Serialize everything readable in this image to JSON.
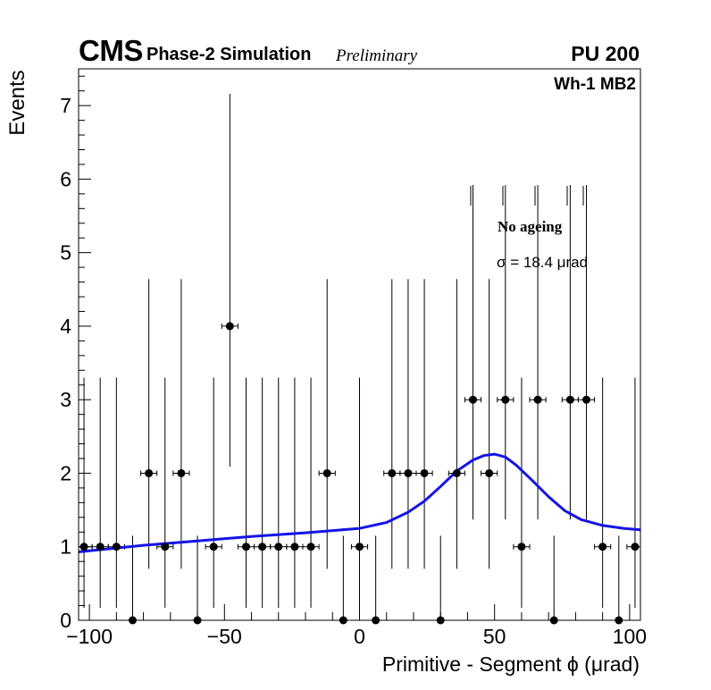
{
  "header": {
    "experiment": "CMS",
    "subtitle": "Phase-2 Simulation",
    "status": "Preliminary",
    "pileup": "PU 200",
    "chamber": "Wh-1 MB2"
  },
  "legend": {
    "title": "No ageing",
    "fit_result": "σ = 18.4  μrad"
  },
  "chart_data": {
    "type": "scatter",
    "xlabel": "Primitive - Segment ϕ (μrad)",
    "ylabel": "Events",
    "xlim": [
      -104,
      104
    ],
    "ylim": [
      0,
      7.5
    ],
    "x_ticks": [
      -100,
      -50,
      0,
      50,
      100
    ],
    "y_ticks": [
      0,
      1,
      2,
      3,
      4,
      5,
      6,
      7
    ],
    "bin_width": 6,
    "series": [
      {
        "x": [
          -102,
          -96,
          -90,
          -84,
          -78,
          -72,
          -66,
          -60,
          -54,
          -48,
          -42,
          -36,
          -30,
          -24,
          -18,
          -12,
          -6,
          0,
          6,
          12,
          18,
          24,
          30,
          36,
          42,
          48,
          54,
          60,
          66,
          72,
          78,
          84,
          90,
          96,
          102
        ],
        "y": [
          1,
          1,
          1,
          0,
          2,
          1,
          2,
          0,
          1,
          4,
          1,
          1,
          1,
          1,
          1,
          2,
          0,
          1,
          0,
          2,
          2,
          2,
          0,
          2,
          3,
          2,
          3,
          1,
          3,
          0,
          3,
          3,
          1,
          0,
          1
        ]
      }
    ],
    "fit": {
      "color": "#1414e6",
      "x": [
        -104,
        -80,
        -60,
        -40,
        -20,
        0,
        10,
        18,
        24,
        30,
        36,
        42,
        46,
        50,
        54,
        58,
        64,
        70,
        76,
        82,
        90,
        98,
        104
      ],
      "y": [
        0.93,
        1.02,
        1.08,
        1.14,
        1.19,
        1.25,
        1.33,
        1.47,
        1.62,
        1.82,
        2.03,
        2.18,
        2.24,
        2.26,
        2.22,
        2.11,
        1.9,
        1.68,
        1.49,
        1.37,
        1.29,
        1.25,
        1.23
      ]
    }
  }
}
